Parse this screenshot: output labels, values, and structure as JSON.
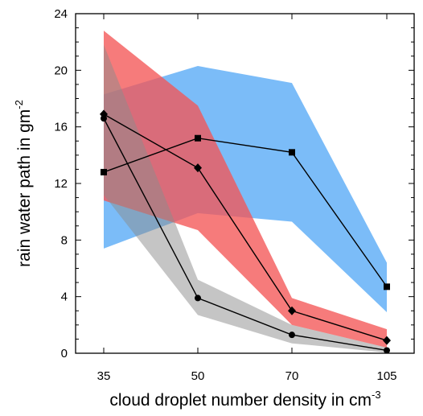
{
  "chart_data": {
    "type": "line",
    "title": "",
    "xlabel": {
      "text": "cloud droplet number density in cm",
      "sup": "-3"
    },
    "ylabel": {
      "text": "rain water path in gm",
      "sup": "-2"
    },
    "x_categories": [
      "35",
      "50",
      "70",
      "105"
    ],
    "ylim": [
      0,
      24
    ],
    "y_major_ticks": [
      0,
      4,
      8,
      12,
      16,
      20,
      24
    ],
    "y_minor_step": 1,
    "grid": false,
    "bands": [
      {
        "id": "blue",
        "color": "#3d9cf5",
        "opacity": 0.68,
        "upper": [
          18.3,
          20.3,
          19.1,
          6.4
        ],
        "lower": [
          7.4,
          9.9,
          9.3,
          2.9
        ]
      },
      {
        "id": "red",
        "color": "#f45656",
        "opacity": 0.78,
        "upper": [
          22.8,
          17.5,
          3.9,
          1.7
        ],
        "lower": [
          10.8,
          8.7,
          2.0,
          0.4
        ]
      },
      {
        "id": "gray",
        "color": "#8c8c8c",
        "opacity": 0.5,
        "upper": [
          21.8,
          5.2,
          2.0,
          0.4
        ],
        "lower": [
          11.2,
          2.7,
          0.7,
          0.05
        ]
      }
    ],
    "series": [
      {
        "marker": "square",
        "values": [
          12.8,
          15.2,
          14.2,
          4.7
        ]
      },
      {
        "marker": "diamond",
        "values": [
          16.9,
          13.1,
          3.0,
          0.9
        ]
      },
      {
        "marker": "circle",
        "values": [
          16.6,
          3.9,
          1.3,
          0.2
        ]
      }
    ]
  }
}
